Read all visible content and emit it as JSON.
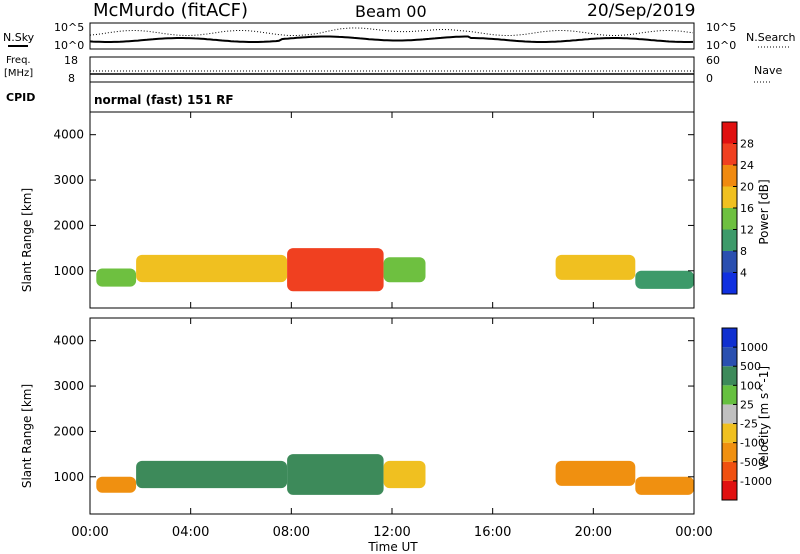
{
  "header": {
    "station": "McMurdo (fitACF)",
    "beam": "Beam 00",
    "date": "20/Sep/2019"
  },
  "top_panels": {
    "nsky_label": "N.Sky",
    "nsky_ticks": [
      "10^5",
      "10^0"
    ],
    "nsearch_label": "N.Search",
    "nsearch_ticks": [
      "10^5",
      "10^0"
    ],
    "freq_label_1": "Freq.",
    "freq_label_2": "[MHz]",
    "freq_ticks": [
      "18",
      "8"
    ],
    "nave_label": "Nave",
    "nave_ticks": [
      "60",
      "0"
    ],
    "cpid_label": "CPID",
    "cpid_text": "normal (fast) 151 RF"
  },
  "x_axis": {
    "label": "Time UT",
    "ticks": [
      "00:00",
      "04:00",
      "08:00",
      "12:00",
      "16:00",
      "20:00",
      "00:00"
    ]
  },
  "colors": {
    "power": [
      "#1030e0",
      "#2a4fb0",
      "#3d9a6a",
      "#6ec040",
      "#f0c020",
      "#f08a10",
      "#f04020",
      "#e01010"
    ],
    "velocity": [
      "#1030d0",
      "#2a50b0",
      "#3d8a5a",
      "#66c040",
      "#c0c0c0",
      "#f0c020",
      "#f09010",
      "#f05010",
      "#e01010"
    ]
  },
  "chart_data": [
    {
      "type": "heatmap",
      "title": "",
      "ylabel": "Slant Range [km]",
      "xlabel": "Time UT",
      "y_ticks": [
        "4000",
        "3000",
        "2000",
        "1000"
      ],
      "xlim": [
        "00:00",
        "24:00"
      ],
      "ylim": [
        180,
        4500
      ],
      "colorbar_label": "Power [dB]",
      "colorbar_ticks": [
        "28",
        "24",
        "20",
        "16",
        "12",
        "8",
        "4"
      ],
      "colorbar_range": [
        0,
        32
      ],
      "series": [
        {
          "time_range": [
            "00:15",
            "01:50"
          ],
          "range_km": [
            650,
            1050
          ],
          "value": 12
        },
        {
          "time_range": [
            "01:50",
            "07:50"
          ],
          "range_km": [
            750,
            1350
          ],
          "value": 16
        },
        {
          "time_range": [
            "07:50",
            "11:40"
          ],
          "range_km": [
            550,
            1500
          ],
          "value": 26
        },
        {
          "time_range": [
            "11:40",
            "13:20"
          ],
          "range_km": [
            750,
            1300
          ],
          "value": 14
        },
        {
          "time_range": [
            "18:30",
            "21:40"
          ],
          "range_km": [
            800,
            1350
          ],
          "value": 16
        },
        {
          "time_range": [
            "21:40",
            "24:00"
          ],
          "range_km": [
            600,
            1000
          ],
          "value": 10
        }
      ]
    },
    {
      "type": "heatmap",
      "title": "",
      "ylabel": "Slant Range [km]",
      "xlabel": "Time UT",
      "y_ticks": [
        "4000",
        "3000",
        "2000",
        "1000"
      ],
      "xlim": [
        "00:00",
        "24:00"
      ],
      "ylim": [
        180,
        4500
      ],
      "colorbar_label": "Velocity [m s^-1]",
      "colorbar_ticks": [
        "1000",
        "500",
        "100",
        "25",
        "-25",
        "-100",
        "-500",
        "-1000"
      ],
      "series": [
        {
          "time_range": [
            "00:15",
            "01:50"
          ],
          "range_km": [
            650,
            1000
          ],
          "value": -300
        },
        {
          "time_range": [
            "01:50",
            "07:50"
          ],
          "range_km": [
            750,
            1350
          ],
          "value": 200
        },
        {
          "time_range": [
            "07:50",
            "11:40"
          ],
          "range_km": [
            600,
            1500
          ],
          "value": 200
        },
        {
          "time_range": [
            "11:40",
            "13:20"
          ],
          "range_km": [
            750,
            1350
          ],
          "value": -60
        },
        {
          "time_range": [
            "18:30",
            "21:40"
          ],
          "range_km": [
            800,
            1350
          ],
          "value": -300
        },
        {
          "time_range": [
            "21:40",
            "24:00"
          ],
          "range_km": [
            600,
            1000
          ],
          "value": -100
        }
      ]
    }
  ]
}
